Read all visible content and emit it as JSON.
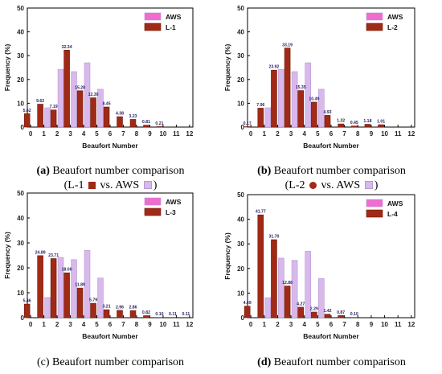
{
  "colors": {
    "aws_fill": "#d9b8ec",
    "aws_stroke": "#b59ad0",
    "lidar_fill": "#a02a16",
    "lidar_stroke": "#6e1808",
    "legend_aws": "#f06ccf"
  },
  "chart_data": [
    {
      "type": "bar",
      "panel_label": "(a)",
      "caption_title": "Beaufort number comparison",
      "caption_sub": [
        "(L-1",
        "vs. AWS",
        ")"
      ],
      "categories": [
        "0",
        "1",
        "2",
        "3",
        "4",
        "5",
        "6",
        "7",
        "8",
        "9",
        "10",
        "11",
        "12"
      ],
      "xlabel": "Beaufort Number",
      "ylabel": "Frequency (%)",
      "ylim": [
        0,
        50
      ],
      "yticks": [
        "0",
        "10",
        "20",
        "30",
        "40",
        "50"
      ],
      "legend": {
        "position": "top-right"
      },
      "series": [
        {
          "name": "AWS",
          "values": [
            0,
            8.1,
            24.2,
            23.3,
            27.0,
            15.9,
            0,
            0,
            0,
            0,
            0,
            0,
            0
          ]
        },
        {
          "name": "L-1",
          "values": [
            5.62,
            9.62,
            7.19,
            32.34,
            15.28,
            12.3,
            8.45,
            4.38,
            3.23,
            0.81,
            0.21,
            0,
            0
          ]
        }
      ],
      "data_labels": [
        "5.62",
        "9.62",
        "7.19",
        "32.34",
        "15.28",
        "12.30",
        "8.45",
        "4.38",
        "3.23",
        "0.81",
        "0.21"
      ]
    },
    {
      "type": "bar",
      "panel_label": "(b)",
      "caption_title": "Beaufort number comparison",
      "caption_sub": [
        "(L-2",
        "vs. AWS",
        ")"
      ],
      "categories": [
        "0",
        "1",
        "2",
        "3",
        "4",
        "5",
        "6",
        "7",
        "8",
        "9",
        "10",
        "11",
        "12"
      ],
      "xlabel": "Beaufort Number",
      "ylabel": "Frequency (%)",
      "ylim": [
        0,
        50
      ],
      "yticks": [
        "0",
        "10",
        "20",
        "30",
        "40",
        "50"
      ],
      "legend": {
        "position": "top-right"
      },
      "series": [
        {
          "name": "AWS",
          "values": [
            0,
            8.1,
            24.2,
            23.3,
            27.0,
            15.9,
            0,
            0,
            0,
            0,
            0,
            0,
            0
          ]
        },
        {
          "name": "L-2",
          "values": [
            0.17,
            7.96,
            23.92,
            33.19,
            15.35,
            10.49,
            4.93,
            1.32,
            0.45,
            1.18,
            1.01,
            0,
            0
          ]
        }
      ],
      "data_labels": [
        "0.17",
        "7.96",
        "23.92",
        "33.19",
        "15.35",
        "10.49",
        "4.93",
        "1.32",
        "0.45",
        "1.18",
        "1.01"
      ]
    },
    {
      "type": "bar",
      "panel_label": "(c)",
      "caption_title": "Beaufort number comparison",
      "caption_sub": null,
      "categories": [
        "0",
        "1",
        "2",
        "3",
        "4",
        "5",
        "6",
        "7",
        "8",
        "9",
        "10",
        "11",
        "12"
      ],
      "xlabel": "Beaufort Number",
      "ylabel": "Frequency (%)",
      "ylim": [
        0,
        50
      ],
      "yticks": [
        "0",
        "10",
        "20",
        "30",
        "40",
        "50"
      ],
      "legend": {
        "position": "top-right"
      },
      "series": [
        {
          "name": "AWS",
          "values": [
            0,
            8.1,
            24.2,
            23.3,
            27.0,
            15.9,
            0,
            0,
            0,
            0,
            0,
            0,
            0
          ]
        },
        {
          "name": "L-3",
          "values": [
            5.46,
            24.89,
            23.71,
            18.0,
            11.89,
            5.79,
            3.21,
            2.96,
            2.86,
            0.82,
            0.1,
            0.11,
            0.11
          ]
        }
      ],
      "data_labels": [
        "5.46",
        "24.89",
        "23.71",
        "18.00",
        "11.89",
        "5.79",
        "3.21",
        "2.96",
        "2.86",
        "0.82",
        "0.10",
        "0.11",
        "0.11"
      ]
    },
    {
      "type": "bar",
      "panel_label": "(d)",
      "caption_title": "Beaufort number comparison",
      "caption_sub": null,
      "categories": [
        "0",
        "1",
        "2",
        "3",
        "4",
        "5",
        "6",
        "7",
        "8",
        "9",
        "10",
        "11",
        "12"
      ],
      "xlabel": "Beaufort Number",
      "ylabel": "Frequency (%)",
      "ylim": [
        0,
        50
      ],
      "yticks": [
        "0",
        "10",
        "20",
        "30",
        "40",
        "50"
      ],
      "legend": {
        "position": "top-right"
      },
      "series": [
        {
          "name": "AWS",
          "values": [
            0,
            8.1,
            24.2,
            23.3,
            27.0,
            15.9,
            0,
            0,
            0,
            0,
            0,
            0,
            0
          ]
        },
        {
          "name": "L-4",
          "values": [
            4.69,
            41.77,
            31.7,
            12.88,
            4.27,
            2.29,
            1.42,
            0.87,
            0.1,
            0,
            0,
            0,
            0
          ]
        }
      ],
      "data_labels": [
        "4.69",
        "41.77",
        "31.70",
        "12.88",
        "4.27",
        "2.29",
        "1.42",
        "0.87",
        "0.10"
      ]
    }
  ]
}
